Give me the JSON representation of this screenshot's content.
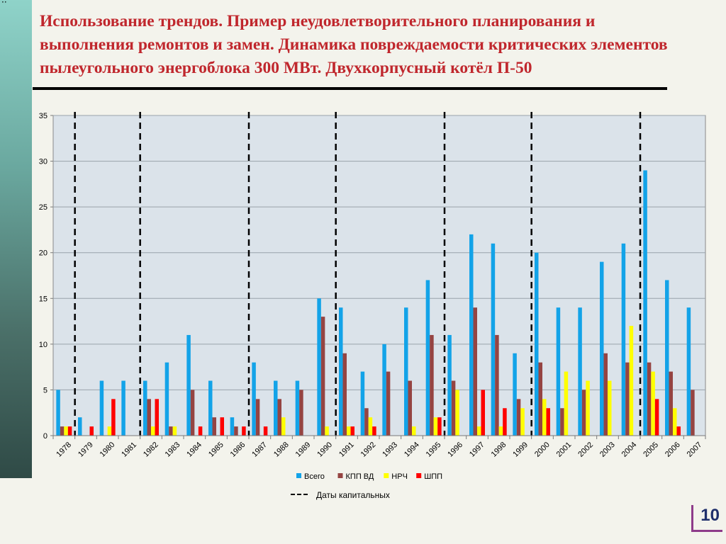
{
  "slide": {
    "title": "Использование трендов. Пример неудовлетворительного планирования и выполнения ремонтов и замен. Динамика повреждаемости критических элементов пылеугольного энергоблока 300 МВт. Двухкорпусный котёл П-50",
    "page_number": "10"
  },
  "colors": {
    "title": "#c0272d",
    "plot_background": "#dbe3ea",
    "grid": "#9aa3ab",
    "capital_repair_line": "#000000"
  },
  "chart_data": {
    "type": "bar",
    "title": "",
    "xlabel": "",
    "ylabel": "",
    "ylim": [
      0,
      35
    ],
    "yticks": [
      0,
      5,
      10,
      15,
      20,
      25,
      30,
      35
    ],
    "grid": true,
    "legend_position": "bottom",
    "categories": [
      "1978",
      "1979",
      "1980",
      "1981",
      "1982",
      "1983",
      "1984",
      "1985",
      "1986",
      "1987",
      "1988",
      "1989",
      "1990",
      "1991",
      "1992",
      "1993",
      "1994",
      "1995",
      "1996",
      "1997",
      "1998",
      "1999",
      "2000",
      "2001",
      "2002",
      "2003",
      "2004",
      "2005",
      "2006",
      "2007"
    ],
    "series": [
      {
        "name": "Всего",
        "color": "#13a3e8",
        "values": [
          5,
          2,
          6,
          6,
          6,
          8,
          11,
          6,
          2,
          8,
          6,
          6,
          15,
          14,
          7,
          10,
          14,
          17,
          11,
          22,
          21,
          9,
          20,
          14,
          14,
          19,
          21,
          29,
          17,
          14
        ]
      },
      {
        "name": "КПП ВД",
        "color": "#954442",
        "values": [
          1,
          0,
          0,
          0,
          4,
          1,
          5,
          2,
          1,
          4,
          4,
          5,
          13,
          9,
          3,
          7,
          6,
          11,
          6,
          14,
          11,
          4,
          8,
          3,
          5,
          9,
          8,
          8,
          7,
          5
        ]
      },
      {
        "name": "НРЧ",
        "color": "#ffff00",
        "values": [
          1,
          0,
          1,
          0,
          1,
          1,
          0,
          0,
          0,
          0,
          2,
          0,
          1,
          1,
          2,
          0,
          1,
          2,
          5,
          1,
          1,
          3,
          4,
          7,
          6,
          6,
          12,
          7,
          3,
          0
        ]
      },
      {
        "name": "ШПП",
        "color": "#ff0000",
        "values": [
          1,
          1,
          4,
          0,
          4,
          0,
          1,
          2,
          1,
          1,
          0,
          0,
          0,
          1,
          1,
          0,
          0,
          2,
          0,
          5,
          3,
          0,
          3,
          0,
          0,
          0,
          0,
          4,
          1,
          0
        ]
      }
    ],
    "capital_repair_dates": {
      "label": "Даты капитальных",
      "after_years": [
        "1978",
        "1981",
        "1986",
        "1990",
        "1995",
        "1999",
        "2004"
      ]
    }
  }
}
